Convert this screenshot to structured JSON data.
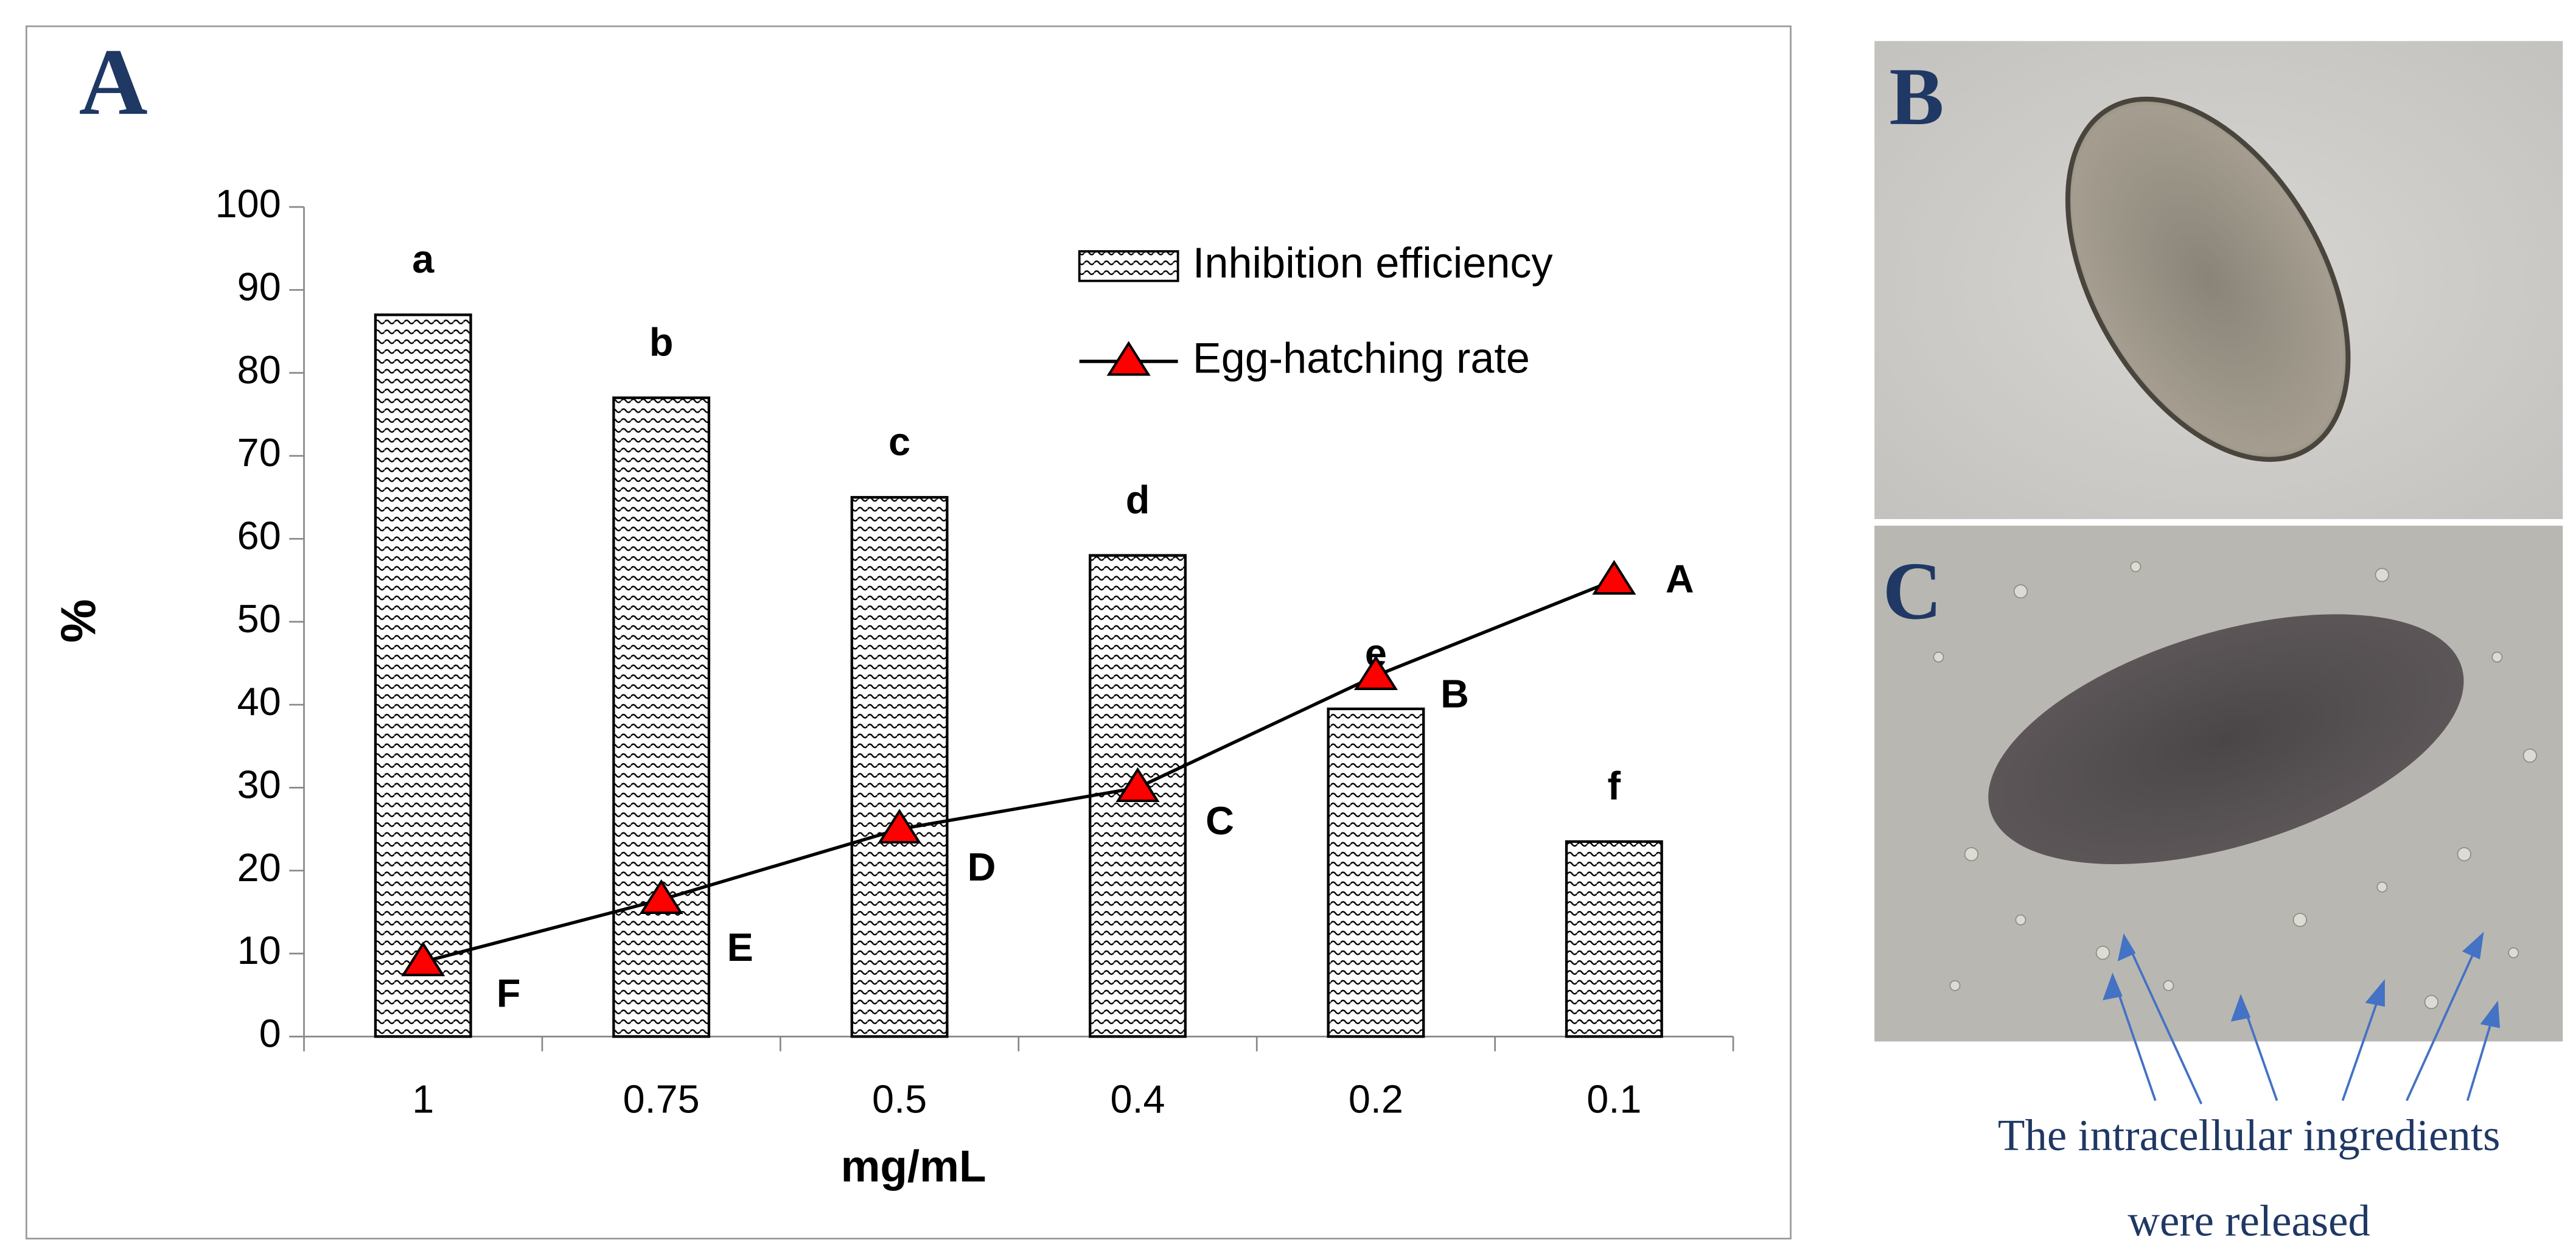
{
  "panels": {
    "A": "A",
    "B": "B",
    "C": "C"
  },
  "chart_data": {
    "type": "bar_line",
    "x_label": "mg/mL",
    "y_label": "%",
    "categories": [
      "1",
      "0.75",
      "0.5",
      "0.4",
      "0.2",
      "0.1"
    ],
    "series": [
      {
        "name": "Inhibition efficiency",
        "type": "bar",
        "color": "#000000",
        "values": [
          87,
          77,
          65,
          58,
          39.5,
          23.5
        ],
        "letters": [
          "a",
          "b",
          "c",
          "d",
          "e",
          "f"
        ]
      },
      {
        "name": "Egg-hatching rate",
        "type": "line",
        "color": "#ff0000",
        "values": [
          9,
          16.5,
          25,
          30,
          43.5,
          55
        ],
        "letters": [
          "F",
          "E",
          "D",
          "C",
          "B",
          "A"
        ]
      }
    ],
    "ylim": [
      0,
      100
    ],
    "yticks": [
      0,
      10,
      20,
      30,
      40,
      50,
      60,
      70,
      80,
      90,
      100
    ],
    "legend": "upper right"
  },
  "annotation": [
    "The intracellular ingredients",
    "were released"
  ]
}
